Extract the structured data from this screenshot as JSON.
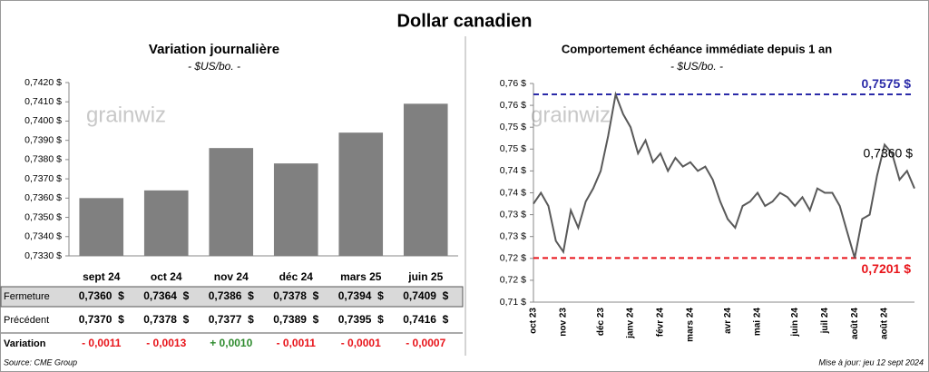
{
  "title": "Dollar canadien",
  "source": "Source: CME Group",
  "updated": "Mise à jour: jeu 12 sept 2024",
  "watermark": "grainwiz",
  "chart_data": [
    {
      "type": "bar",
      "title": "Variation  journalière",
      "subtitle": "- $US/bo. -",
      "categories": [
        "sept 24",
        "oct 24",
        "nov 24",
        "déc 24",
        "mars 25",
        "juin 25"
      ],
      "values": [
        0.736,
        0.7364,
        0.7386,
        0.7378,
        0.7394,
        0.7409
      ],
      "color": "#808080",
      "ylim": [
        0.733,
        0.742
      ],
      "yticks": [
        {
          "value": 0.733,
          "label": "0,7330 $"
        },
        {
          "value": 0.734,
          "label": "0,7340 $"
        },
        {
          "value": 0.735,
          "label": "0,7350 $"
        },
        {
          "value": 0.736,
          "label": "0,7360 $"
        },
        {
          "value": 0.737,
          "label": "0,7370 $"
        },
        {
          "value": 0.738,
          "label": "0,7380 $"
        },
        {
          "value": 0.739,
          "label": "0,7390 $"
        },
        {
          "value": 0.74,
          "label": "0,7400 $"
        },
        {
          "value": 0.741,
          "label": "0,7410 $"
        },
        {
          "value": 0.742,
          "label": "0,7420 $"
        }
      ],
      "grid": false
    },
    {
      "type": "line",
      "title": "Comportement échéance immédiate depuis 1 an",
      "subtitle": "- $US/bo. -",
      "categories": [
        "oct 23",
        null,
        null,
        null,
        "nov 23",
        null,
        null,
        null,
        null,
        "déc 23",
        null,
        null,
        null,
        "janv 24",
        null,
        null,
        null,
        "févr 24",
        null,
        null,
        null,
        "mars 24",
        null,
        null,
        null,
        null,
        "avr 24",
        null,
        null,
        null,
        "mai 24",
        null,
        null,
        null,
        null,
        "juin 24",
        null,
        null,
        null,
        "juil 24",
        null,
        null,
        null,
        "août 24",
        null,
        null,
        null,
        "août 24",
        null,
        null,
        null,
        null
      ],
      "values": [
        0.7325,
        0.735,
        0.732,
        0.724,
        0.7215,
        0.731,
        0.727,
        0.733,
        0.736,
        0.74,
        0.748,
        0.7575,
        0.753,
        0.75,
        0.744,
        0.747,
        0.742,
        0.744,
        0.74,
        0.743,
        0.741,
        0.742,
        0.74,
        0.741,
        0.738,
        0.733,
        0.729,
        0.727,
        0.732,
        0.733,
        0.735,
        0.732,
        0.733,
        0.735,
        0.734,
        0.732,
        0.734,
        0.731,
        0.736,
        0.735,
        0.735,
        0.732,
        0.726,
        0.7201,
        0.729,
        0.73,
        0.739,
        0.746,
        0.744,
        0.738,
        0.74,
        0.736
      ],
      "color": "#595959",
      "end_label": "0,7360 $",
      "reference_lines": [
        {
          "value": 0.7575,
          "label": "0,7575 $",
          "color": "#2a2aa8"
        },
        {
          "value": 0.7201,
          "label": "0,7201 $",
          "color": "#e8141a"
        }
      ],
      "ylim": [
        0.71,
        0.76
      ],
      "yticks": [
        {
          "value": 0.71,
          "label": "0,71 $"
        },
        {
          "value": 0.715,
          "label": "0,72 $"
        },
        {
          "value": 0.72,
          "label": "0,72 $"
        },
        {
          "value": 0.725,
          "label": "0,73 $"
        },
        {
          "value": 0.73,
          "label": "0,73 $"
        },
        {
          "value": 0.735,
          "label": "0,74 $"
        },
        {
          "value": 0.74,
          "label": "0,74 $"
        },
        {
          "value": 0.745,
          "label": "0,75 $"
        },
        {
          "value": 0.75,
          "label": "0,75 $"
        },
        {
          "value": 0.755,
          "label": "0,76 $"
        },
        {
          "value": 0.76,
          "label": "0,76 $"
        }
      ],
      "grid": false
    }
  ],
  "table": {
    "rows": [
      {
        "label": "Fermeture",
        "cells": [
          "0,7360  $",
          "0,7364  $",
          "0,7386  $",
          "0,7378  $",
          "0,7394  $",
          "0,7409  $"
        ]
      },
      {
        "label": "Précédent",
        "cells": [
          "0,7370  $",
          "0,7378  $",
          "0,7377  $",
          "0,7389  $",
          "0,7395  $",
          "0,7416  $"
        ]
      },
      {
        "label": "Variation",
        "cells": [
          "- 0,0011",
          "- 0,0013",
          "+ 0,0010",
          "- 0,0011",
          "- 0,0001",
          "- 0,0007"
        ],
        "colors": [
          "#e8141a",
          "#e8141a",
          "#2e8b2e",
          "#e8141a",
          "#e8141a",
          "#e8141a"
        ]
      }
    ]
  }
}
